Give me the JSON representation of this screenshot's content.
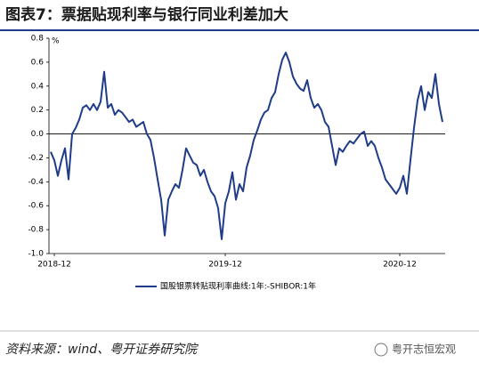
{
  "chart_data": {
    "type": "line",
    "title": "图表7：票据贴现利率与银行同业利差加大",
    "unit": "%",
    "categories": [
      null,
      "2018-12",
      null,
      null,
      null,
      null,
      null,
      null,
      null,
      null,
      null,
      null,
      null,
      null,
      null,
      null,
      null,
      null,
      null,
      null,
      null,
      null,
      null,
      null,
      null,
      null,
      null,
      null,
      null,
      null,
      null,
      null,
      null,
      null,
      null,
      null,
      null,
      null,
      null,
      null,
      null,
      null,
      null,
      null,
      null,
      null,
      null,
      null,
      null,
      "2019-12",
      null,
      null,
      null,
      null,
      null,
      null,
      null,
      null,
      null,
      null,
      null,
      null,
      null,
      null,
      null,
      null,
      null,
      null,
      null,
      null,
      null,
      null,
      null,
      null,
      null,
      null,
      null,
      null,
      null,
      null,
      null,
      null,
      null,
      null,
      null,
      null,
      null,
      null,
      null,
      null,
      null,
      null,
      null,
      null,
      null,
      null,
      null,
      null,
      "2020-12",
      null,
      null,
      null,
      null,
      null,
      null,
      null,
      null,
      null,
      null,
      null,
      null
    ],
    "series": [
      {
        "name": "国股银票转贴现利率曲线:1年:-SHIBOR:1年",
        "color": "#1f3c88",
        "values": [
          -0.15,
          -0.22,
          -0.35,
          -0.22,
          -0.12,
          -0.38,
          0.0,
          0.05,
          0.12,
          0.22,
          0.24,
          0.2,
          0.25,
          0.2,
          0.27,
          0.52,
          0.22,
          0.25,
          0.16,
          0.2,
          0.18,
          0.14,
          0.1,
          0.12,
          0.06,
          0.08,
          0.1,
          0.0,
          -0.05,
          -0.2,
          -0.38,
          -0.55,
          -0.85,
          -0.55,
          -0.48,
          -0.42,
          -0.45,
          -0.3,
          -0.12,
          -0.18,
          -0.24,
          -0.26,
          -0.35,
          -0.3,
          -0.4,
          -0.48,
          -0.52,
          -0.62,
          -0.88,
          -0.58,
          -0.48,
          -0.32,
          -0.55,
          -0.42,
          -0.48,
          -0.28,
          -0.18,
          -0.05,
          0.03,
          0.12,
          0.18,
          0.2,
          0.3,
          0.35,
          0.5,
          0.62,
          0.68,
          0.6,
          0.48,
          0.42,
          0.38,
          0.36,
          0.45,
          0.3,
          0.22,
          0.25,
          0.2,
          0.1,
          0.06,
          -0.1,
          -0.26,
          -0.12,
          -0.15,
          -0.1,
          -0.06,
          -0.08,
          -0.04,
          0.0,
          0.02,
          -0.1,
          -0.06,
          -0.1,
          -0.2,
          -0.28,
          -0.38,
          -0.42,
          -0.46,
          -0.5,
          -0.45,
          -0.35,
          -0.5,
          -0.22,
          0.05,
          0.28,
          0.4,
          0.2,
          0.35,
          0.3,
          0.5,
          0.25,
          0.1
        ]
      }
    ],
    "ylim": [
      -1.0,
      0.8
    ],
    "yticks": [
      0.8,
      0.6,
      0.4,
      0.2,
      {
        "value": 0,
        "label": "0.0"
      },
      -0.2,
      -0.4,
      -0.6,
      -0.8,
      {
        "value": -1,
        "label": "-1.0"
      }
    ],
    "source": "资料来源：wind、粤开证券研究院",
    "watermark": "粤开志恒宏观"
  }
}
